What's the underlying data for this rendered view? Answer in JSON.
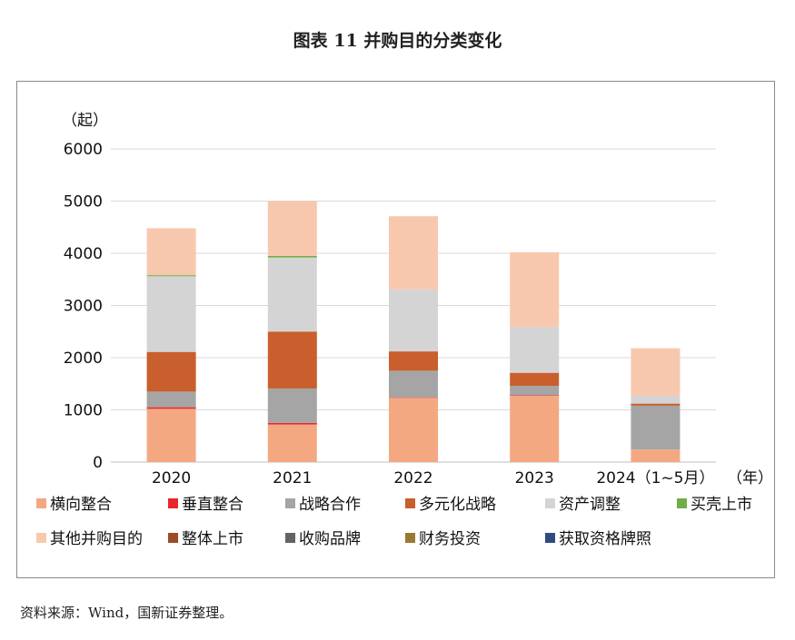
{
  "figure_title": "图表 11  并购目的分类变化",
  "source": "资料来源：Wind，国新证券整理。",
  "chart_data": {
    "type": "bar",
    "stacked": true,
    "ylabel": "（起）",
    "xlabel": "（年）",
    "categories": [
      "2020",
      "2021",
      "2022",
      "2023",
      "2024（1~5月）"
    ],
    "y_ticks": [
      "0",
      "1000",
      "2000",
      "3000",
      "4000",
      "5000",
      "6000"
    ],
    "ylim": [
      0,
      6000
    ],
    "grid": true,
    "legend_position": "bottom",
    "series": [
      {
        "name": "横向整合",
        "color": "#F4A882",
        "values": [
          1020,
          720,
          1230,
          1270,
          240
        ]
      },
      {
        "name": "垂直整合",
        "color": "#E8262B",
        "values": [
          30,
          30,
          10,
          10,
          0
        ]
      },
      {
        "name": "战略合作",
        "color": "#A5A5A5",
        "values": [
          300,
          660,
          510,
          180,
          840
        ]
      },
      {
        "name": "多元化战略",
        "color": "#C85F2C",
        "values": [
          760,
          1090,
          370,
          250,
          40
        ]
      },
      {
        "name": "资产调整",
        "color": "#D4D4D4",
        "values": [
          1450,
          1420,
          1190,
          880,
          150
        ]
      },
      {
        "name": "买壳上市",
        "color": "#70AD47",
        "values": [
          20,
          30,
          0,
          0,
          0
        ]
      },
      {
        "name": "其他并购目的",
        "color": "#F8C8AE",
        "values": [
          900,
          1050,
          1400,
          1430,
          910
        ]
      },
      {
        "name": "整体上市",
        "color": "#9E4A25",
        "values": [
          0,
          0,
          0,
          0,
          0
        ]
      },
      {
        "name": "收购品牌",
        "color": "#636363",
        "values": [
          0,
          0,
          0,
          0,
          0
        ]
      },
      {
        "name": "财务投资",
        "color": "#997A35",
        "values": [
          0,
          0,
          0,
          0,
          0
        ]
      },
      {
        "name": "获取资格牌照",
        "color": "#2F4C80",
        "values": [
          0,
          0,
          0,
          0,
          0
        ]
      }
    ]
  }
}
